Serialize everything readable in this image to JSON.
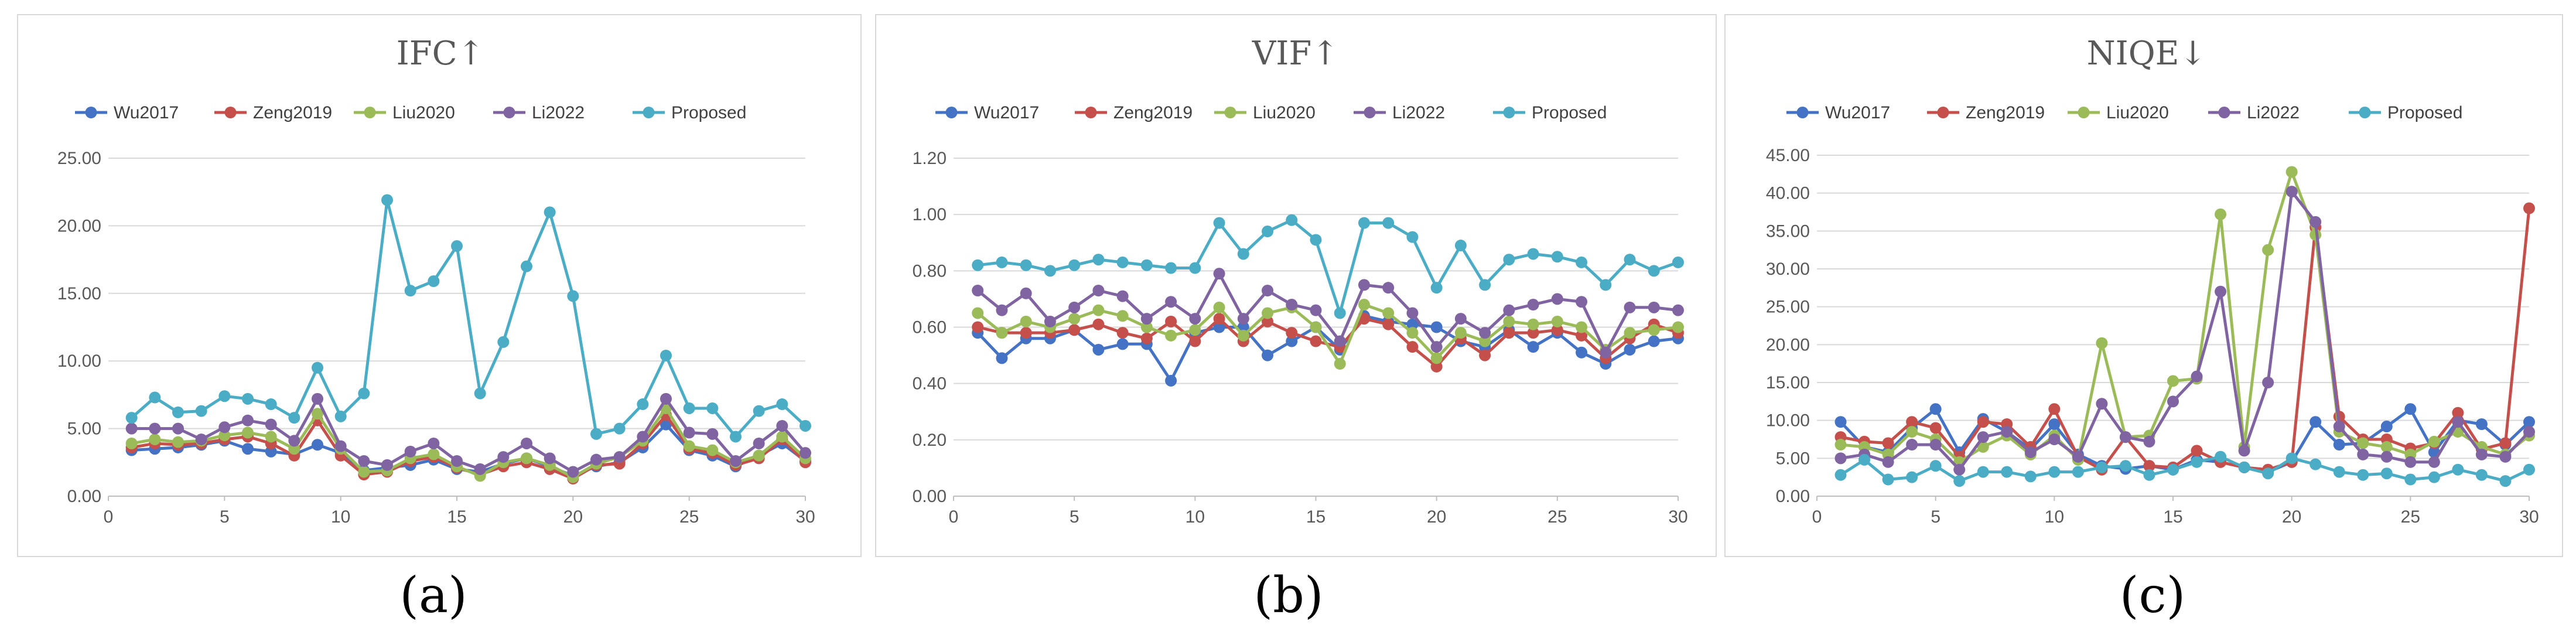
{
  "captions": [
    "(a)",
    "(b)",
    "(c)"
  ],
  "chart_data": [
    {
      "type": "line",
      "title": "IFC↑",
      "xlabel": "",
      "ylabel": "",
      "xlim": [
        0,
        30
      ],
      "xticks": [
        0,
        5,
        10,
        15,
        20,
        25,
        30
      ],
      "ylim": [
        0,
        25
      ],
      "yticks": [
        0,
        5,
        10,
        15,
        20,
        25
      ],
      "ytick_labels": [
        "0.00",
        "5.00",
        "10.00",
        "15.00",
        "20.00",
        "25.00"
      ],
      "grid": true,
      "legend": "top",
      "x": [
        1,
        2,
        3,
        4,
        5,
        6,
        7,
        8,
        9,
        10,
        11,
        12,
        13,
        14,
        15,
        16,
        17,
        18,
        19,
        20,
        21,
        22,
        23,
        24,
        25,
        26,
        27,
        28,
        29,
        30
      ],
      "series": [
        {
          "name": "Wu2017",
          "color": "#4472C4",
          "values": [
            3.4,
            3.5,
            3.6,
            3.8,
            4.1,
            3.5,
            3.3,
            3.1,
            3.8,
            3.2,
            1.9,
            2.1,
            2.3,
            2.7,
            2.0,
            1.8,
            2.4,
            2.8,
            2.2,
            1.5,
            2.2,
            2.5,
            3.6,
            5.3,
            3.4,
            3.0,
            2.2,
            3.0,
            3.9,
            2.6
          ]
        },
        {
          "name": "Zeng2019",
          "color": "#C5504B",
          "values": [
            3.6,
            3.9,
            3.8,
            3.9,
            4.2,
            4.4,
            3.9,
            3.0,
            5.6,
            3.0,
            1.6,
            1.8,
            2.6,
            2.9,
            2.1,
            1.6,
            2.2,
            2.5,
            2.0,
            1.3,
            2.3,
            2.4,
            3.9,
            6.0,
            3.5,
            3.2,
            2.3,
            2.8,
            4.2,
            2.5
          ]
        },
        {
          "name": "Liu2020",
          "color": "#9BBB59",
          "values": [
            3.9,
            4.2,
            4.0,
            4.1,
            4.5,
            4.7,
            4.4,
            3.5,
            6.1,
            3.5,
            1.8,
            1.9,
            2.8,
            3.1,
            2.2,
            1.5,
            2.5,
            2.8,
            2.3,
            1.4,
            2.4,
            2.9,
            4.1,
            6.5,
            3.7,
            3.4,
            2.5,
            3.0,
            4.4,
            2.8
          ]
        },
        {
          "name": "Li2022",
          "color": "#8064A2",
          "values": [
            5.0,
            5.0,
            5.0,
            4.2,
            5.1,
            5.6,
            5.3,
            4.1,
            7.2,
            3.7,
            2.6,
            2.3,
            3.3,
            3.9,
            2.6,
            2.0,
            2.9,
            3.9,
            2.8,
            1.8,
            2.7,
            2.9,
            4.4,
            7.2,
            4.7,
            4.6,
            2.6,
            3.9,
            5.2,
            3.2
          ]
        },
        {
          "name": "Proposed",
          "color": "#4BACC6",
          "values": [
            5.8,
            7.3,
            6.2,
            6.3,
            7.4,
            7.2,
            6.8,
            5.8,
            9.5,
            5.9,
            7.6,
            21.9,
            15.2,
            15.9,
            18.5,
            7.6,
            11.4,
            17.0,
            21.0,
            14.8,
            4.6,
            5.0,
            6.8,
            10.4,
            6.5,
            6.5,
            4.4,
            6.3,
            6.8,
            5.2
          ]
        }
      ]
    },
    {
      "type": "line",
      "title": "VIF↑",
      "xlabel": "",
      "ylabel": "",
      "xlim": [
        0,
        30
      ],
      "xticks": [
        0,
        5,
        10,
        15,
        20,
        25,
        30
      ],
      "ylim": [
        0,
        1.2
      ],
      "yticks": [
        0,
        0.2,
        0.4,
        0.6,
        0.8,
        1.0,
        1.2
      ],
      "ytick_labels": [
        "0.00",
        "0.20",
        "0.40",
        "0.60",
        "0.80",
        "1.00",
        "1.20"
      ],
      "grid": true,
      "legend": "top",
      "x": [
        1,
        2,
        3,
        4,
        5,
        6,
        7,
        8,
        9,
        10,
        11,
        12,
        13,
        14,
        15,
        16,
        17,
        18,
        19,
        20,
        21,
        22,
        23,
        24,
        25,
        26,
        27,
        28,
        29,
        30
      ],
      "series": [
        {
          "name": "Wu2017",
          "color": "#4472C4",
          "values": [
            0.58,
            0.49,
            0.56,
            0.56,
            0.59,
            0.52,
            0.54,
            0.54,
            0.41,
            0.58,
            0.6,
            0.6,
            0.5,
            0.55,
            0.6,
            0.52,
            0.64,
            0.62,
            0.61,
            0.6,
            0.55,
            0.53,
            0.59,
            0.53,
            0.58,
            0.51,
            0.47,
            0.52,
            0.55,
            0.56
          ]
        },
        {
          "name": "Zeng2019",
          "color": "#C5504B",
          "values": [
            0.6,
            0.58,
            0.58,
            0.58,
            0.59,
            0.61,
            0.58,
            0.56,
            0.62,
            0.55,
            0.63,
            0.55,
            0.62,
            0.58,
            0.55,
            0.53,
            0.63,
            0.61,
            0.53,
            0.46,
            0.56,
            0.5,
            0.58,
            0.58,
            0.59,
            0.57,
            0.49,
            0.56,
            0.61,
            0.58
          ]
        },
        {
          "name": "Liu2020",
          "color": "#9BBB59",
          "values": [
            0.65,
            0.58,
            0.62,
            0.6,
            0.63,
            0.66,
            0.64,
            0.6,
            0.57,
            0.59,
            0.67,
            0.57,
            0.65,
            0.67,
            0.6,
            0.47,
            0.68,
            0.65,
            0.58,
            0.49,
            0.58,
            0.55,
            0.62,
            0.61,
            0.62,
            0.6,
            0.52,
            0.58,
            0.59,
            0.6
          ]
        },
        {
          "name": "Li2022",
          "color": "#8064A2",
          "values": [
            0.73,
            0.66,
            0.72,
            0.62,
            0.67,
            0.73,
            0.71,
            0.63,
            0.69,
            0.63,
            0.79,
            0.63,
            0.73,
            0.68,
            0.66,
            0.55,
            0.75,
            0.74,
            0.65,
            0.53,
            0.63,
            0.58,
            0.66,
            0.68,
            0.7,
            0.69,
            0.51,
            0.67,
            0.67,
            0.66
          ]
        },
        {
          "name": "Proposed",
          "color": "#4BACC6",
          "values": [
            0.82,
            0.83,
            0.82,
            0.8,
            0.82,
            0.84,
            0.83,
            0.82,
            0.81,
            0.81,
            0.97,
            0.86,
            0.94,
            0.98,
            0.91,
            0.65,
            0.97,
            0.97,
            0.92,
            0.74,
            0.89,
            0.75,
            0.84,
            0.86,
            0.85,
            0.83,
            0.75,
            0.84,
            0.8,
            0.83
          ]
        }
      ]
    },
    {
      "type": "line",
      "title": "NIQE↓",
      "xlabel": "",
      "ylabel": "",
      "xlim": [
        0,
        30
      ],
      "xticks": [
        0,
        5,
        10,
        15,
        20,
        25,
        30
      ],
      "ylim": [
        0,
        45
      ],
      "yticks": [
        0,
        5,
        10,
        15,
        20,
        25,
        30,
        35,
        40,
        45
      ],
      "ytick_labels": [
        "0.00",
        "5.00",
        "10.00",
        "15.00",
        "20.00",
        "25.00",
        "30.00",
        "35.00",
        "40.00",
        "45.00"
      ],
      "grid": true,
      "legend": "top",
      "x": [
        1,
        2,
        3,
        4,
        5,
        6,
        7,
        8,
        9,
        10,
        11,
        12,
        13,
        14,
        15,
        16,
        17,
        18,
        19,
        20,
        21,
        22,
        23,
        24,
        25,
        26,
        27,
        28,
        29,
        30
      ],
      "series": [
        {
          "name": "Wu2017",
          "color": "#4472C4",
          "values": [
            9.8,
            6.5,
            5.8,
            9.0,
            11.5,
            5.8,
            10.2,
            8.5,
            6.2,
            9.5,
            5.5,
            4.0,
            3.6,
            4.0,
            3.5,
            4.8,
            4.5,
            3.8,
            3.2,
            4.5,
            9.8,
            6.8,
            7.0,
            9.2,
            11.5,
            5.8,
            10.0,
            9.5,
            6.8,
            9.8
          ]
        },
        {
          "name": "Zeng2019",
          "color": "#C5504B",
          "values": [
            7.8,
            7.2,
            7.0,
            9.8,
            9.0,
            5.2,
            9.8,
            9.5,
            6.5,
            11.5,
            5.2,
            3.5,
            7.8,
            4.0,
            3.8,
            6.0,
            4.5,
            3.8,
            3.5,
            4.5,
            35.5,
            10.5,
            7.5,
            7.5,
            6.3,
            7.0,
            11.0,
            6.2,
            7.0,
            38.0
          ]
        },
        {
          "name": "Liu2020",
          "color": "#9BBB59",
          "values": [
            6.8,
            6.5,
            5.5,
            8.5,
            7.5,
            4.5,
            6.5,
            8.0,
            5.5,
            8.0,
            4.8,
            20.2,
            7.8,
            8.0,
            15.2,
            15.5,
            37.2,
            6.5,
            32.5,
            42.8,
            34.5,
            8.5,
            7.0,
            6.5,
            5.5,
            7.2,
            8.5,
            6.5,
            5.5,
            8.0
          ]
        },
        {
          "name": "Li2022",
          "color": "#8064A2",
          "values": [
            5.0,
            5.5,
            4.5,
            6.8,
            6.8,
            3.5,
            7.8,
            8.5,
            5.8,
            7.5,
            5.2,
            12.2,
            7.8,
            7.2,
            12.5,
            15.8,
            27.0,
            6.0,
            15.0,
            40.2,
            36.2,
            9.2,
            5.5,
            5.2,
            4.5,
            4.5,
            9.8,
            5.5,
            5.2,
            8.5
          ]
        },
        {
          "name": "Proposed",
          "color": "#4BACC6",
          "values": [
            2.8,
            4.8,
            2.2,
            2.5,
            4.0,
            2.0,
            3.2,
            3.2,
            2.6,
            3.2,
            3.2,
            3.8,
            4.0,
            2.8,
            3.5,
            4.5,
            5.2,
            3.8,
            3.0,
            5.0,
            4.2,
            3.2,
            2.8,
            3.0,
            2.2,
            2.5,
            3.5,
            2.8,
            2.0,
            3.5
          ]
        }
      ]
    }
  ]
}
